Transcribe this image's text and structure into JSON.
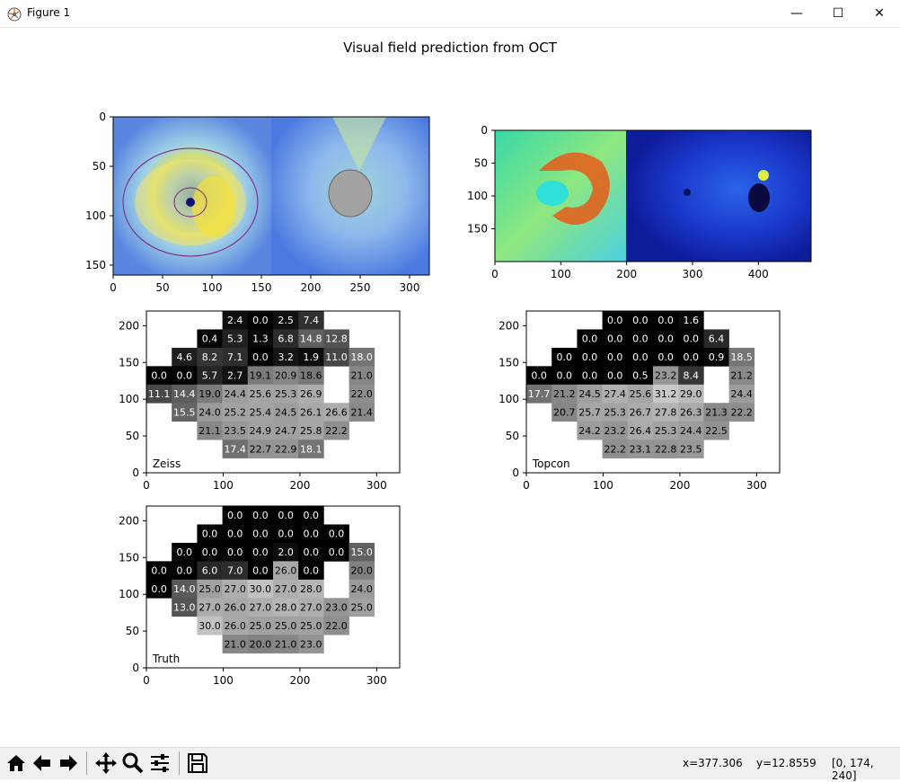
{
  "window": {
    "title": "Figure 1",
    "minimize": "—",
    "maximize": "☐",
    "close": "✕"
  },
  "figure": {
    "title": "Visual field prediction from OCT"
  },
  "images": {
    "zeiss_scan": {
      "xticks": [
        "0",
        "50",
        "100",
        "150",
        "200",
        "250",
        "300"
      ],
      "yticks": [
        "0",
        "50",
        "100",
        "150"
      ]
    },
    "topcon_scan": {
      "xticks": [
        "0",
        "100",
        "200",
        "300",
        "400"
      ],
      "yticks": [
        "0",
        "50",
        "100",
        "150"
      ]
    }
  },
  "panels": {
    "xticks": [
      "0",
      "100",
      "200",
      "300"
    ],
    "yticks": [
      "0",
      "50",
      "100",
      "150",
      "200"
    ],
    "zeiss": {
      "label": "Zeiss",
      "rows": [
        [
          "",
          "",
          "",
          "2.4",
          "0.0",
          "2.5",
          "7.4",
          "",
          "",
          ""
        ],
        [
          "",
          "",
          "0.4",
          "5.3",
          "1.3",
          "6.8",
          "14.8",
          "12.8",
          "",
          ""
        ],
        [
          "",
          "4.6",
          "8.2",
          "7.1",
          "0.0",
          "3.2",
          "1.9",
          "11.0",
          "18.0",
          ""
        ],
        [
          "0.0",
          "0.0",
          "5.7",
          "2.7",
          "19.1",
          "20.9",
          "18.6",
          "",
          "21.0",
          ""
        ],
        [
          "11.1",
          "14.4",
          "19.0",
          "24.4",
          "25.6",
          "25.3",
          "26.9",
          "",
          "22.0",
          ""
        ],
        [
          "",
          "15.5",
          "24.0",
          "25.2",
          "25.4",
          "24.5",
          "26.1",
          "26.6",
          "21.4",
          ""
        ],
        [
          "",
          "",
          "21.1",
          "23.5",
          "24.9",
          "24.7",
          "25.8",
          "22.2",
          "",
          ""
        ],
        [
          "",
          "",
          "",
          "17.4",
          "22.7",
          "22.9",
          "18.1",
          "",
          "",
          ""
        ]
      ]
    },
    "topcon": {
      "label": "Topcon",
      "rows": [
        [
          "",
          "",
          "",
          "0.0",
          "0.0",
          "0.0",
          "1.6",
          "",
          "",
          ""
        ],
        [
          "",
          "",
          "0.0",
          "0.0",
          "0.0",
          "0.0",
          "0.0",
          "6.4",
          "",
          ""
        ],
        [
          "",
          "0.0",
          "0.0",
          "0.0",
          "0.0",
          "0.0",
          "0.0",
          "0.9",
          "18.5",
          ""
        ],
        [
          "0.0",
          "0.0",
          "0.0",
          "0.0",
          "0.5",
          "23.2",
          "8.4",
          "",
          "21.2",
          ""
        ],
        [
          "17.7",
          "21.2",
          "24.5",
          "27.4",
          "25.6",
          "31.2",
          "29.0",
          "",
          "24.4",
          ""
        ],
        [
          "",
          "20.7",
          "25.7",
          "25.3",
          "26.7",
          "27.8",
          "26.3",
          "21.3",
          "22.2",
          ""
        ],
        [
          "",
          "",
          "24.2",
          "23.2",
          "26.4",
          "25.3",
          "24.4",
          "22.5",
          "",
          ""
        ],
        [
          "",
          "",
          "",
          "22.2",
          "23.1",
          "22.8",
          "23.5",
          "",
          "",
          ""
        ]
      ]
    },
    "truth": {
      "label": "Truth",
      "rows": [
        [
          "",
          "",
          "",
          "0.0",
          "0.0",
          "0.0",
          "0.0",
          "",
          "",
          ""
        ],
        [
          "",
          "",
          "0.0",
          "0.0",
          "0.0",
          "0.0",
          "0.0",
          "0.0",
          "",
          ""
        ],
        [
          "",
          "0.0",
          "0.0",
          "0.0",
          "0.0",
          "2.0",
          "0.0",
          "0.0",
          "15.0",
          ""
        ],
        [
          "0.0",
          "0.0",
          "6.0",
          "7.0",
          "0.0",
          "26.0",
          "0.0",
          "",
          "20.0",
          ""
        ],
        [
          "0.0",
          "14.0",
          "25.0",
          "27.0",
          "30.0",
          "27.0",
          "28.0",
          "",
          "24.0",
          ""
        ],
        [
          "",
          "13.0",
          "27.0",
          "26.0",
          "27.0",
          "28.0",
          "27.0",
          "23.0",
          "25.0",
          ""
        ],
        [
          "",
          "",
          "30.0",
          "26.0",
          "25.0",
          "25.0",
          "25.0",
          "22.0",
          "",
          ""
        ],
        [
          "",
          "",
          "",
          "21.0",
          "20.0",
          "21.0",
          "23.0",
          "",
          "",
          ""
        ]
      ]
    }
  },
  "status": {
    "x": "x=377.306",
    "y": "y=12.8559",
    "pixel": "[0, 174, 240]"
  },
  "toolbar": {
    "icons": [
      "home-icon",
      "back-arrow-icon",
      "forward-arrow-icon",
      "pan-icon",
      "zoom-icon",
      "subplots-icon",
      "save-icon"
    ]
  }
}
